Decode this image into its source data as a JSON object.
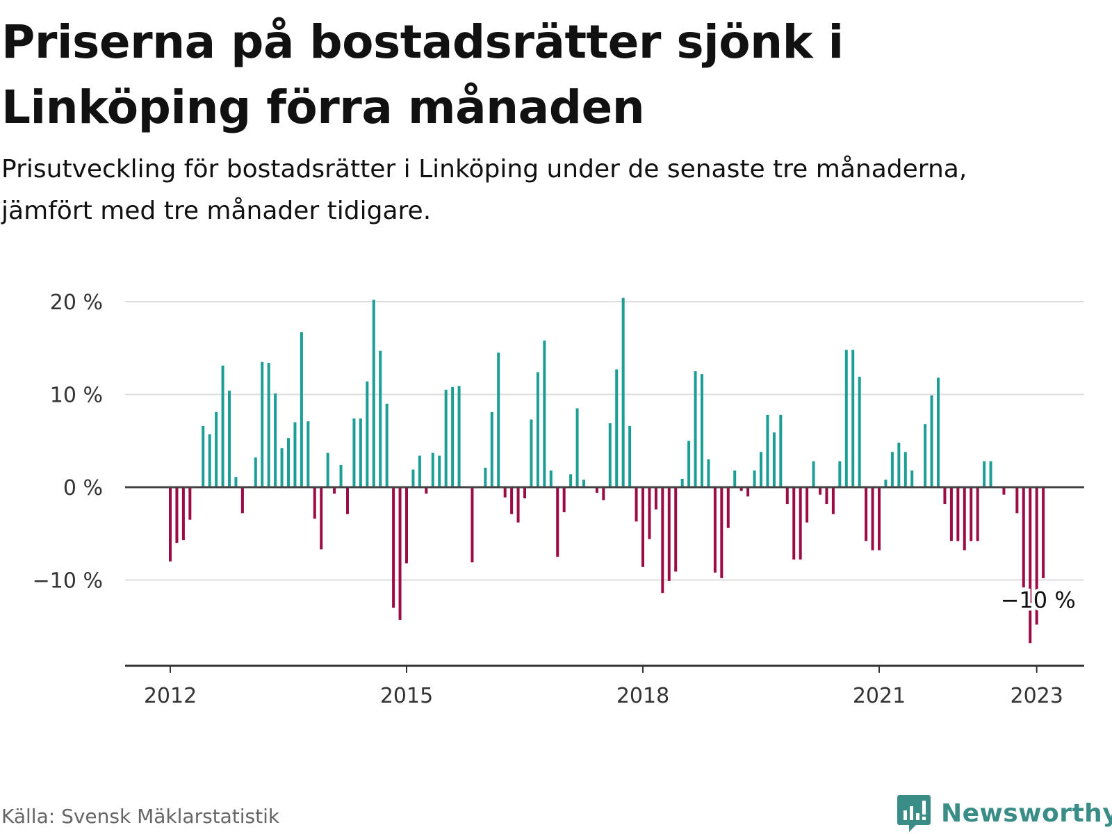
{
  "title": "Priserna på bostadsrätter sjönk i Linköping förra månaden",
  "subtitle": "Prisutveckling för bostadsrätter i Linköping under de senaste tre månaderna, jämfört med tre månader tidigare.",
  "source": "Källa: Svensk Mäklarstatistik",
  "brand": {
    "name": "Newsworthy",
    "logo_icon": "newsworthy-bar-chart-logo-icon"
  },
  "colors": {
    "positive": "#1a9e96",
    "negative": "#9c0b45",
    "grid": "#dddddd",
    "zero_line": "#444444",
    "axis": "#333333",
    "brand": "#3a8c87"
  },
  "chart_data": {
    "type": "bar",
    "title": "",
    "xlabel": "",
    "ylabel": "",
    "x_start": "2012-01",
    "x_end": "2023-02",
    "ylim": [
      -19.5,
      21
    ],
    "y_ticks": [
      {
        "value": 20,
        "label": "20 %"
      },
      {
        "value": 10,
        "label": "10 %"
      },
      {
        "value": 0,
        "label": "0 %"
      },
      {
        "value": -10,
        "label": "−10 %"
      }
    ],
    "x_ticks": [
      {
        "date": "2012-01",
        "label": "2012"
      },
      {
        "date": "2015-01",
        "label": "2015"
      },
      {
        "date": "2018-01",
        "label": "2018"
      },
      {
        "date": "2021-01",
        "label": "2021"
      },
      {
        "date": "2023-01",
        "label": "2023"
      }
    ],
    "grid": "horizontal",
    "annotation": {
      "date": "2023-01",
      "value": -10,
      "label": "−10 %"
    },
    "series": [
      {
        "values": [
          {
            "date": "2012-01",
            "value": -8.0
          },
          {
            "date": "2012-02",
            "value": -6.0
          },
          {
            "date": "2012-03",
            "value": -5.7
          },
          {
            "date": "2012-04",
            "value": -3.5
          },
          {
            "date": "2012-05",
            "value": 0.0
          },
          {
            "date": "2012-06",
            "value": 6.6
          },
          {
            "date": "2012-07",
            "value": 5.7
          },
          {
            "date": "2012-08",
            "value": 8.1
          },
          {
            "date": "2012-09",
            "value": 13.1
          },
          {
            "date": "2012-10",
            "value": 10.4
          },
          {
            "date": "2012-11",
            "value": 1.1
          },
          {
            "date": "2012-12",
            "value": -2.8
          },
          {
            "date": "2013-01",
            "value": 0.0
          },
          {
            "date": "2013-02",
            "value": 3.2
          },
          {
            "date": "2013-03",
            "value": 13.5
          },
          {
            "date": "2013-04",
            "value": 13.4
          },
          {
            "date": "2013-05",
            "value": 10.1
          },
          {
            "date": "2013-06",
            "value": 4.2
          },
          {
            "date": "2013-07",
            "value": 5.3
          },
          {
            "date": "2013-08",
            "value": 7.0
          },
          {
            "date": "2013-09",
            "value": 16.7
          },
          {
            "date": "2013-10",
            "value": 7.1
          },
          {
            "date": "2013-11",
            "value": -3.4
          },
          {
            "date": "2013-12",
            "value": -6.7
          },
          {
            "date": "2014-01",
            "value": 3.7
          },
          {
            "date": "2014-02",
            "value": -0.7
          },
          {
            "date": "2014-03",
            "value": 2.4
          },
          {
            "date": "2014-04",
            "value": -2.9
          },
          {
            "date": "2014-05",
            "value": 7.4
          },
          {
            "date": "2014-06",
            "value": 7.4
          },
          {
            "date": "2014-07",
            "value": 11.4
          },
          {
            "date": "2014-08",
            "value": 20.2
          },
          {
            "date": "2014-09",
            "value": 14.7
          },
          {
            "date": "2014-10",
            "value": 9.0
          },
          {
            "date": "2014-11",
            "value": -13.0
          },
          {
            "date": "2014-12",
            "value": -14.3
          },
          {
            "date": "2015-01",
            "value": -8.2
          },
          {
            "date": "2015-02",
            "value": 1.9
          },
          {
            "date": "2015-03",
            "value": 3.4
          },
          {
            "date": "2015-04",
            "value": -0.7
          },
          {
            "date": "2015-05",
            "value": 3.7
          },
          {
            "date": "2015-06",
            "value": 3.4
          },
          {
            "date": "2015-07",
            "value": 10.5
          },
          {
            "date": "2015-08",
            "value": 10.8
          },
          {
            "date": "2015-09",
            "value": 10.9
          },
          {
            "date": "2015-10",
            "value": 0.0
          },
          {
            "date": "2015-11",
            "value": -8.1
          },
          {
            "date": "2015-12",
            "value": 0.0
          },
          {
            "date": "2016-01",
            "value": 2.1
          },
          {
            "date": "2016-02",
            "value": 8.1
          },
          {
            "date": "2016-03",
            "value": 14.5
          },
          {
            "date": "2016-04",
            "value": -1.1
          },
          {
            "date": "2016-05",
            "value": -2.9
          },
          {
            "date": "2016-06",
            "value": -3.8
          },
          {
            "date": "2016-07",
            "value": -1.2
          },
          {
            "date": "2016-08",
            "value": 7.3
          },
          {
            "date": "2016-09",
            "value": 12.4
          },
          {
            "date": "2016-10",
            "value": 15.8
          },
          {
            "date": "2016-11",
            "value": 1.8
          },
          {
            "date": "2016-12",
            "value": -7.5
          },
          {
            "date": "2017-01",
            "value": -2.7
          },
          {
            "date": "2017-02",
            "value": 1.4
          },
          {
            "date": "2017-03",
            "value": 8.5
          },
          {
            "date": "2017-04",
            "value": 0.8
          },
          {
            "date": "2017-05",
            "value": 0.0
          },
          {
            "date": "2017-06",
            "value": -0.6
          },
          {
            "date": "2017-07",
            "value": -1.4
          },
          {
            "date": "2017-08",
            "value": 6.9
          },
          {
            "date": "2017-09",
            "value": 12.7
          },
          {
            "date": "2017-10",
            "value": 20.4
          },
          {
            "date": "2017-11",
            "value": 6.6
          },
          {
            "date": "2017-12",
            "value": -3.7
          },
          {
            "date": "2018-01",
            "value": -8.6
          },
          {
            "date": "2018-02",
            "value": -5.6
          },
          {
            "date": "2018-03",
            "value": -2.4
          },
          {
            "date": "2018-04",
            "value": -11.4
          },
          {
            "date": "2018-05",
            "value": -10.1
          },
          {
            "date": "2018-06",
            "value": -9.1
          },
          {
            "date": "2018-07",
            "value": 0.9
          },
          {
            "date": "2018-08",
            "value": 5.0
          },
          {
            "date": "2018-09",
            "value": 12.5
          },
          {
            "date": "2018-10",
            "value": 12.2
          },
          {
            "date": "2018-11",
            "value": 3.0
          },
          {
            "date": "2018-12",
            "value": -9.2
          },
          {
            "date": "2019-01",
            "value": -9.8
          },
          {
            "date": "2019-02",
            "value": -4.4
          },
          {
            "date": "2019-03",
            "value": 1.8
          },
          {
            "date": "2019-04",
            "value": -0.4
          },
          {
            "date": "2019-05",
            "value": -1.0
          },
          {
            "date": "2019-06",
            "value": 1.8
          },
          {
            "date": "2019-07",
            "value": 3.8
          },
          {
            "date": "2019-08",
            "value": 7.8
          },
          {
            "date": "2019-09",
            "value": 5.9
          },
          {
            "date": "2019-10",
            "value": 7.8
          },
          {
            "date": "2019-11",
            "value": -1.8
          },
          {
            "date": "2019-12",
            "value": -7.8
          },
          {
            "date": "2020-01",
            "value": -7.8
          },
          {
            "date": "2020-02",
            "value": -3.8
          },
          {
            "date": "2020-03",
            "value": 2.8
          },
          {
            "date": "2020-04",
            "value": -0.8
          },
          {
            "date": "2020-05",
            "value": -1.8
          },
          {
            "date": "2020-06",
            "value": -2.9
          },
          {
            "date": "2020-07",
            "value": 2.8
          },
          {
            "date": "2020-08",
            "value": 14.8
          },
          {
            "date": "2020-09",
            "value": 14.8
          },
          {
            "date": "2020-10",
            "value": 11.9
          },
          {
            "date": "2020-11",
            "value": -5.8
          },
          {
            "date": "2020-12",
            "value": -6.8
          },
          {
            "date": "2021-01",
            "value": -6.8
          },
          {
            "date": "2021-02",
            "value": 0.8
          },
          {
            "date": "2021-03",
            "value": 3.8
          },
          {
            "date": "2021-04",
            "value": 4.8
          },
          {
            "date": "2021-05",
            "value": 3.8
          },
          {
            "date": "2021-06",
            "value": 1.8
          },
          {
            "date": "2021-07",
            "value": 0.0
          },
          {
            "date": "2021-08",
            "value": 6.8
          },
          {
            "date": "2021-09",
            "value": 9.9
          },
          {
            "date": "2021-10",
            "value": 11.8
          },
          {
            "date": "2021-11",
            "value": -1.8
          },
          {
            "date": "2021-12",
            "value": -5.8
          },
          {
            "date": "2022-01",
            "value": -5.8
          },
          {
            "date": "2022-02",
            "value": -6.8
          },
          {
            "date": "2022-03",
            "value": -5.8
          },
          {
            "date": "2022-04",
            "value": -5.8
          },
          {
            "date": "2022-05",
            "value": 2.8
          },
          {
            "date": "2022-06",
            "value": 2.8
          },
          {
            "date": "2022-07",
            "value": 0.0
          },
          {
            "date": "2022-08",
            "value": -0.8
          },
          {
            "date": "2022-09",
            "value": 0.0
          },
          {
            "date": "2022-10",
            "value": -2.8
          },
          {
            "date": "2022-11",
            "value": -10.8
          },
          {
            "date": "2022-12",
            "value": -16.8
          },
          {
            "date": "2023-01",
            "value": -14.8
          },
          {
            "date": "2023-02",
            "value": -9.8
          }
        ]
      }
    ]
  }
}
